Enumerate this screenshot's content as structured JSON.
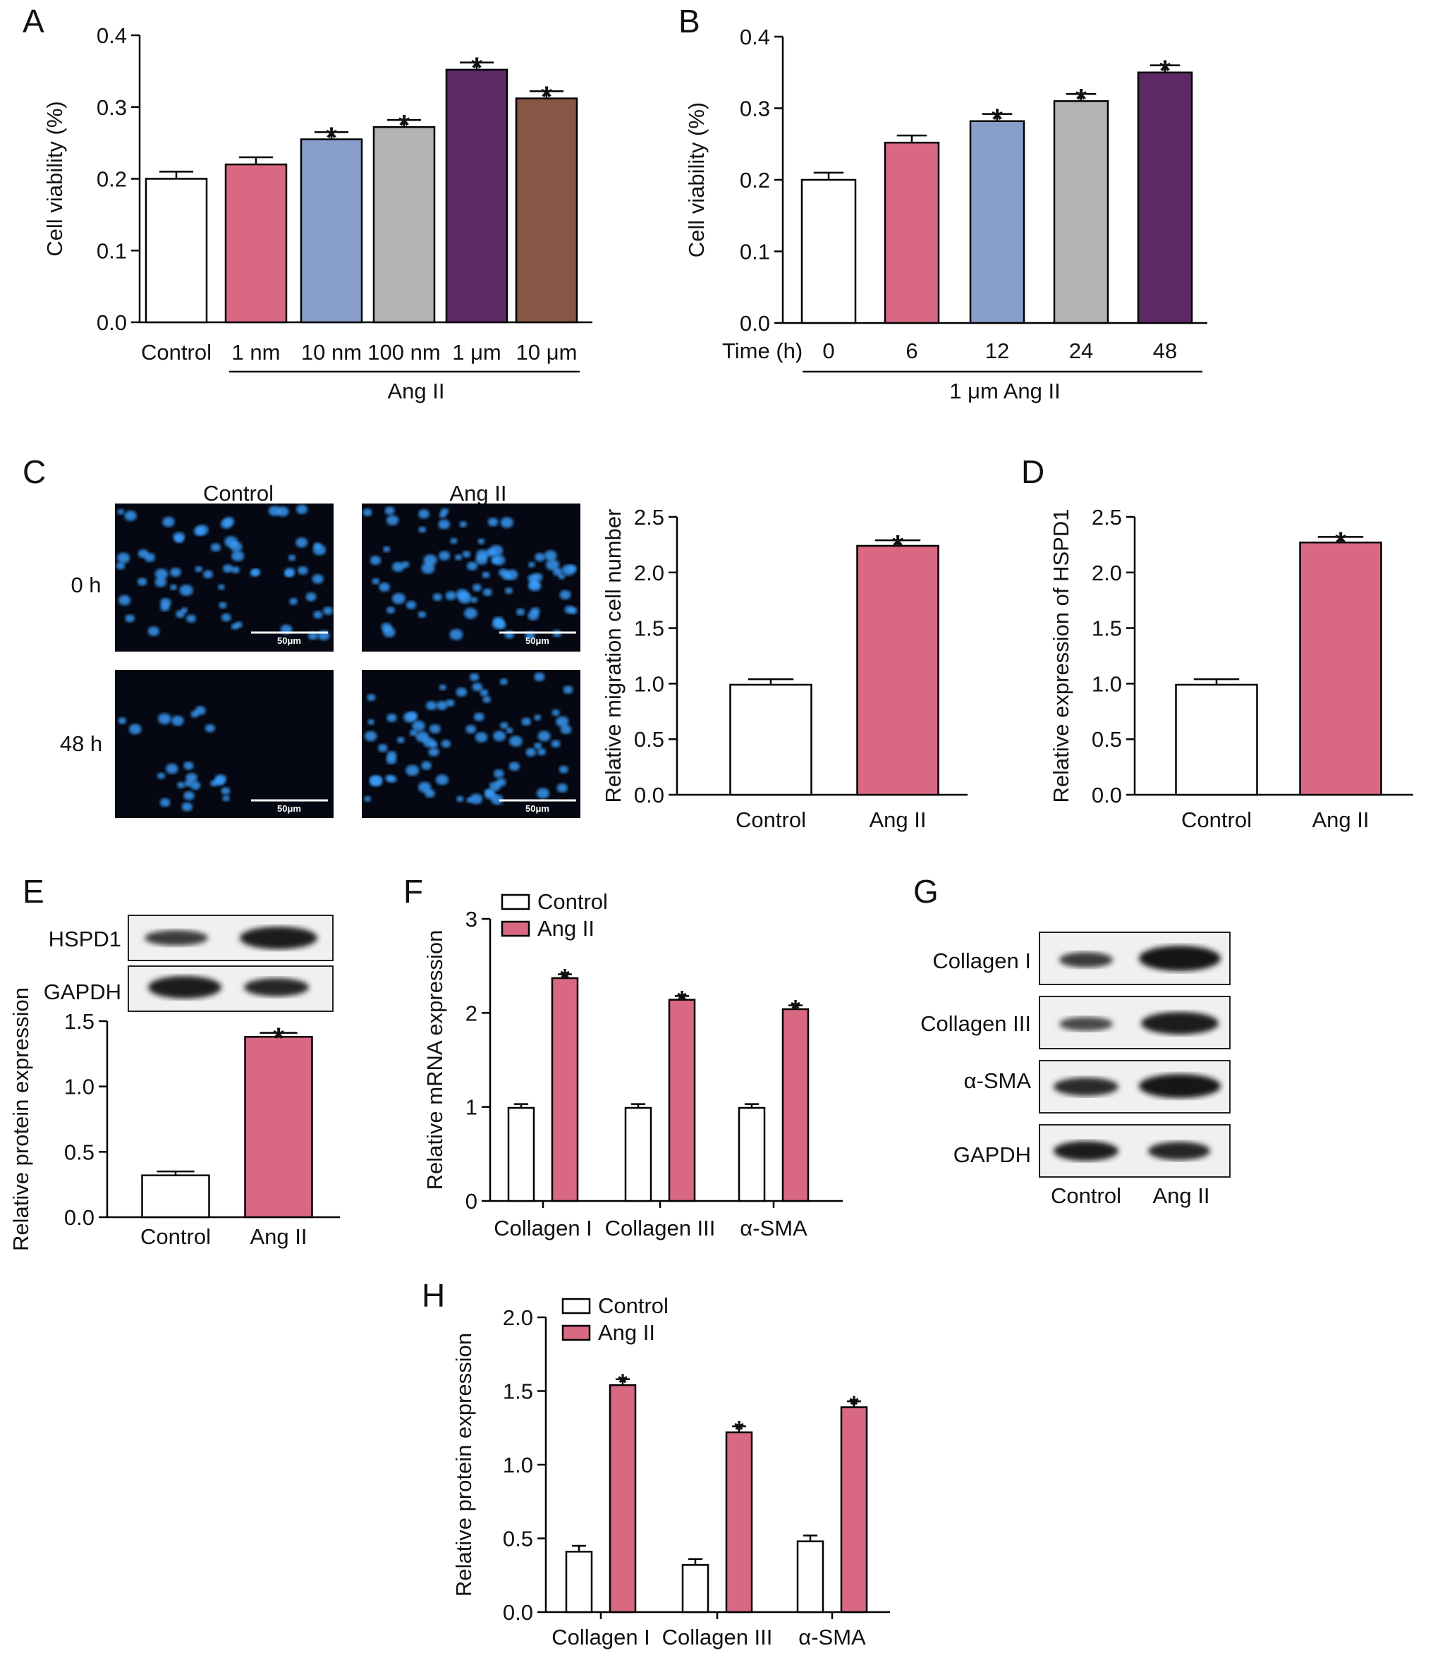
{
  "colors": {
    "white": "#ffffff",
    "pink": "#d96882",
    "blue": "#889fcb",
    "gray": "#b3b3b3",
    "purple": "#5e2867",
    "brown": "#875645"
  },
  "panels": {
    "A": {
      "letter": "A",
      "group_label": "Ang II"
    },
    "B": {
      "letter": "B",
      "axis_prefix": "Time (h)",
      "group_label": "1 μm Ang II"
    },
    "C": {
      "letter": "C",
      "image_cols": [
        "Control",
        "Ang II"
      ],
      "image_rows": [
        "0 h",
        "48 h"
      ],
      "scale_bar": "50μm"
    },
    "D": {
      "letter": "D"
    },
    "E": {
      "letter": "E",
      "blot_labels": [
        "HSPD1",
        "GAPDH"
      ]
    },
    "F": {
      "letter": "F"
    },
    "G": {
      "letter": "G",
      "blot_labels": [
        "Collagen I",
        "Collagen III",
        "α-SMA",
        "GAPDH"
      ],
      "lane_labels": [
        "Control",
        "Ang II"
      ]
    },
    "H": {
      "letter": "H"
    }
  },
  "chart_data": [
    {
      "panel": "A",
      "type": "bar",
      "categories": [
        "Control",
        "1 nm",
        "10 nm",
        "100 nm",
        "1 μm",
        "10 μm"
      ],
      "values": [
        0.2,
        0.22,
        0.255,
        0.272,
        0.352,
        0.312
      ],
      "errors": [
        0.01,
        0.01,
        0.01,
        0.01,
        0.01,
        0.01
      ],
      "significant": [
        false,
        false,
        true,
        true,
        true,
        true
      ],
      "bar_colors": [
        "#ffffff",
        "#d96882",
        "#889fcb",
        "#b3b3b3",
        "#5e2867",
        "#875645"
      ],
      "ylabel": "Cell viability (%)",
      "ylim": [
        0,
        0.4
      ],
      "yticks": [
        "0.0",
        "0.1",
        "0.2",
        "0.3",
        "0.4"
      ]
    },
    {
      "panel": "B",
      "type": "bar",
      "categories": [
        "0",
        "6",
        "12",
        "24",
        "48"
      ],
      "values": [
        0.2,
        0.252,
        0.282,
        0.31,
        0.35
      ],
      "errors": [
        0.01,
        0.01,
        0.01,
        0.01,
        0.01
      ],
      "significant": [
        false,
        false,
        true,
        true,
        true
      ],
      "bar_colors": [
        "#ffffff",
        "#d96882",
        "#889fcb",
        "#b3b3b3",
        "#5e2867"
      ],
      "ylabel": "Cell viability (%)",
      "ylim": [
        0,
        0.4
      ],
      "yticks": [
        "0.0",
        "0.1",
        "0.2",
        "0.3",
        "0.4"
      ]
    },
    {
      "panel": "C",
      "type": "bar",
      "categories": [
        "Control",
        "Ang II"
      ],
      "values": [
        0.99,
        2.24
      ],
      "errors": [
        0.05,
        0.05
      ],
      "significant": [
        false,
        true
      ],
      "bar_colors": [
        "#ffffff",
        "#d96882"
      ],
      "ylabel": "Relative migration cell number",
      "ylim": [
        0,
        2.5
      ],
      "yticks": [
        "0.0",
        "0.5",
        "1.0",
        "1.5",
        "2.0",
        "2.5"
      ]
    },
    {
      "panel": "D",
      "type": "bar",
      "categories": [
        "Control",
        "Ang II"
      ],
      "values": [
        0.99,
        2.27
      ],
      "errors": [
        0.05,
        0.05
      ],
      "significant": [
        false,
        true
      ],
      "bar_colors": [
        "#ffffff",
        "#d96882"
      ],
      "ylabel": "Relative expression of HSPD1",
      "ylim": [
        0,
        2.5
      ],
      "yticks": [
        "0.0",
        "0.5",
        "1.0",
        "1.5",
        "2.0",
        "2.5"
      ]
    },
    {
      "panel": "E",
      "type": "bar",
      "categories": [
        "Control",
        "Ang II"
      ],
      "values": [
        0.32,
        1.38
      ],
      "errors": [
        0.03,
        0.03
      ],
      "significant": [
        false,
        true
      ],
      "bar_colors": [
        "#ffffff",
        "#d96882"
      ],
      "ylabel": "Relative protein expression",
      "ylim": [
        0,
        1.5
      ],
      "yticks": [
        "0.0",
        "0.5",
        "1.0",
        "1.5"
      ]
    },
    {
      "panel": "F",
      "type": "bar",
      "categories": [
        "Collagen I",
        "Collagen III",
        "α-SMA"
      ],
      "series": [
        {
          "name": "Control",
          "values": [
            0.99,
            0.99,
            0.99
          ],
          "errors": [
            0.04,
            0.04,
            0.04
          ],
          "significant": [
            false,
            false,
            false
          ],
          "color": "#ffffff"
        },
        {
          "name": "Ang II",
          "values": [
            2.37,
            2.14,
            2.04
          ],
          "errors": [
            0.04,
            0.04,
            0.04
          ],
          "significant": [
            true,
            true,
            true
          ],
          "color": "#d96882"
        }
      ],
      "ylabel": "Relative mRNA expression",
      "ylim": [
        0,
        3
      ],
      "yticks": [
        "0",
        "1",
        "2",
        "3"
      ],
      "legend": "top-left"
    },
    {
      "panel": "H",
      "type": "bar",
      "categories": [
        "Collagen I",
        "Collagen III",
        "α-SMA"
      ],
      "series": [
        {
          "name": "Control",
          "values": [
            0.41,
            0.32,
            0.48
          ],
          "errors": [
            0.04,
            0.04,
            0.04
          ],
          "significant": [
            false,
            false,
            false
          ],
          "color": "#ffffff"
        },
        {
          "name": "Ang II",
          "values": [
            1.54,
            1.22,
            1.39
          ],
          "errors": [
            0.04,
            0.04,
            0.04
          ],
          "significant": [
            true,
            true,
            true
          ],
          "color": "#d96882"
        }
      ],
      "ylabel": "Relative protein expression",
      "ylim": [
        0,
        2.0
      ],
      "yticks": [
        "0.0",
        "0.5",
        "1.0",
        "1.5",
        "2.0"
      ],
      "legend": "top-left"
    }
  ]
}
